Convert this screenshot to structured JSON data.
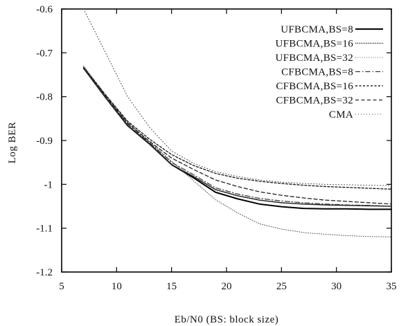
{
  "chart_data": {
    "type": "line",
    "xlabel": "Eb/N0 (BS: block size)",
    "ylabel": "Log BER",
    "xlim": [
      5,
      35
    ],
    "ylim": [
      -1.2,
      -0.6
    ],
    "xticks": [
      "5",
      "10",
      "15",
      "20",
      "25",
      "30",
      "35"
    ],
    "yticks": [
      "-0.6",
      "-0.7",
      "-0.8",
      "-0.9",
      "-1",
      "-1.1",
      "-1.2"
    ],
    "grid": false,
    "legend_position": "top-right",
    "series": [
      {
        "name": "UFBCMA,BS=8",
        "style": "solid-bold",
        "color": "#000000",
        "x": [
          7,
          9,
          11,
          13,
          15,
          17,
          19,
          21,
          23,
          25,
          27,
          29,
          31,
          33,
          35
        ],
        "y": [
          -0.735,
          -0.802,
          -0.866,
          -0.908,
          -0.955,
          -0.985,
          -1.018,
          -1.033,
          -1.045,
          -1.051,
          -1.055,
          -1.056,
          -1.056,
          -1.057,
          -1.057
        ]
      },
      {
        "name": "UFBCMA,BS=16",
        "style": "dotted-dense",
        "color": "#222222",
        "x": [
          7,
          9,
          11,
          13,
          15,
          17,
          19,
          21,
          23,
          25,
          27,
          29,
          31,
          33,
          35
        ],
        "y": [
          -0.735,
          -0.802,
          -0.866,
          -0.908,
          -0.955,
          -0.982,
          -1.012,
          -1.026,
          -1.036,
          -1.042,
          -1.045,
          -1.047,
          -1.048,
          -1.049,
          -1.05
        ]
      },
      {
        "name": "UFBCMA,BS=32",
        "style": "dotted-light",
        "color": "#555555",
        "x": [
          7,
          9,
          11,
          13,
          15,
          17,
          19,
          21,
          23,
          25,
          27,
          29,
          31,
          33,
          35
        ],
        "y": [
          -0.73,
          -0.796,
          -0.858,
          -0.903,
          -0.947,
          -0.992,
          -1.035,
          -1.065,
          -1.09,
          -1.102,
          -1.11,
          -1.114,
          -1.117,
          -1.119,
          -1.12
        ]
      },
      {
        "name": "CFBCMA,BS=8",
        "style": "dash-dot",
        "color": "#333333",
        "x": [
          7,
          9,
          11,
          13,
          15,
          17,
          19,
          21,
          23,
          25,
          27,
          29,
          31,
          33,
          35
        ],
        "y": [
          -0.735,
          -0.8,
          -0.862,
          -0.905,
          -0.95,
          -0.978,
          -1.008,
          -1.022,
          -1.032,
          -1.038,
          -1.042,
          -1.045,
          -1.047,
          -1.048,
          -1.05
        ]
      },
      {
        "name": "CFBCMA,BS=16",
        "style": "dashed-short",
        "color": "#222222",
        "x": [
          7,
          9,
          11,
          13,
          15,
          17,
          19,
          21,
          23,
          25,
          27,
          29,
          31,
          33,
          35
        ],
        "y": [
          -0.733,
          -0.796,
          -0.856,
          -0.897,
          -0.932,
          -0.957,
          -0.975,
          -0.986,
          -0.993,
          -0.998,
          -1.002,
          -1.005,
          -1.007,
          -1.009,
          -1.011
        ]
      },
      {
        "name": "CFBCMA,BS=32",
        "style": "dashed-long",
        "color": "#222222",
        "x": [
          7,
          9,
          11,
          13,
          15,
          17,
          19,
          21,
          23,
          25,
          27,
          29,
          31,
          33,
          35
        ],
        "y": [
          -0.733,
          -0.798,
          -0.86,
          -0.902,
          -0.94,
          -0.966,
          -0.99,
          -1.005,
          -1.017,
          -1.025,
          -1.031,
          -1.036,
          -1.039,
          -1.042,
          -1.045
        ]
      },
      {
        "name": "CMA",
        "style": "dotted-sparse",
        "color": "#444444",
        "x": [
          7,
          9,
          11,
          13,
          15,
          17,
          19,
          21,
          23,
          25,
          27,
          29,
          31,
          33,
          35
        ],
        "y": [
          -0.6,
          -0.7,
          -0.8,
          -0.87,
          -0.924,
          -0.952,
          -0.971,
          -0.982,
          -0.99,
          -0.995,
          -0.998,
          -1.0,
          -1.001,
          -1.002,
          -1.003
        ]
      }
    ]
  }
}
